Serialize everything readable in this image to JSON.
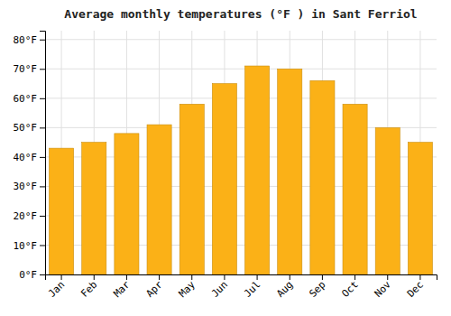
{
  "chart_data": {
    "type": "bar",
    "title": "Average monthly temperatures (°F ) in Sant Ferriol",
    "categories": [
      "Jan",
      "Feb",
      "Mar",
      "Apr",
      "May",
      "Jun",
      "Jul",
      "Aug",
      "Sep",
      "Oct",
      "Nov",
      "Dec"
    ],
    "values": [
      43,
      45,
      48,
      51,
      58,
      65,
      71,
      70,
      66,
      58,
      50,
      45
    ],
    "color": "#FBB117",
    "ylim": [
      0,
      83
    ],
    "yticks": [
      {
        "value": 0,
        "label": "0°F"
      },
      {
        "value": 10,
        "label": "10°F"
      },
      {
        "value": 20,
        "label": "20°F"
      },
      {
        "value": 30,
        "label": "30°F"
      },
      {
        "value": 40,
        "label": "40°F"
      },
      {
        "value": 50,
        "label": "50°F"
      },
      {
        "value": 60,
        "label": "60°F"
      },
      {
        "value": 70,
        "label": "70°F"
      },
      {
        "value": 80,
        "label": "80°F"
      }
    ],
    "grid": true
  }
}
